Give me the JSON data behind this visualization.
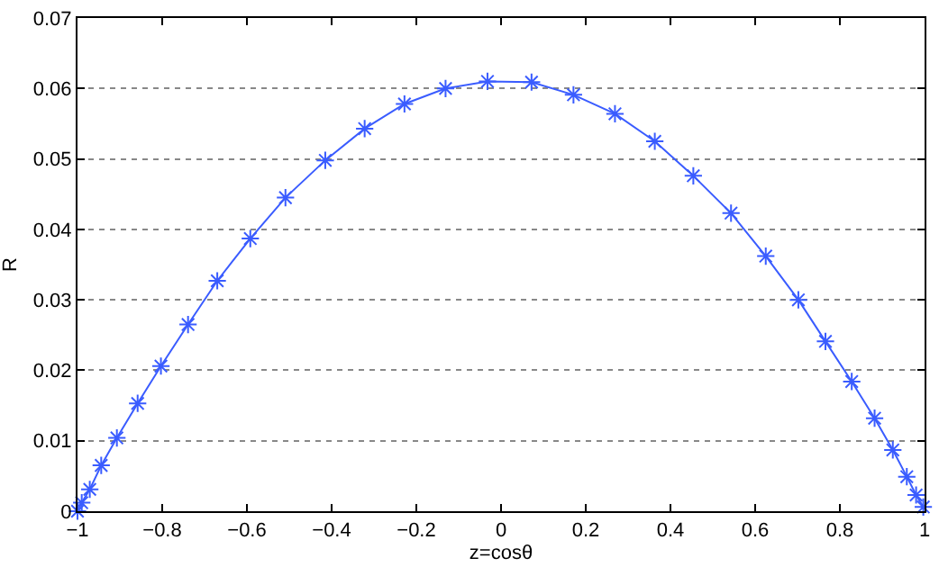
{
  "chart_data": {
    "type": "line",
    "xlabel": "z=cosθ",
    "ylabel": "R",
    "x": [
      -1,
      -0.99,
      -0.971,
      -0.944,
      -0.907,
      -0.858,
      -0.803,
      -0.739,
      -0.67,
      -0.592,
      -0.509,
      -0.415,
      -0.322,
      -0.228,
      -0.131,
      -0.032,
      0.072,
      0.171,
      0.269,
      0.363,
      0.454,
      0.543,
      0.625,
      0.702,
      0.766,
      0.828,
      0.882,
      0.925,
      0.958,
      0.98,
      0.997
    ],
    "series": [
      {
        "color": "#3a5cff",
        "values": [
          0,
          0.0012,
          0.0031,
          0.0065,
          0.0104,
          0.0153,
          0.0206,
          0.0265,
          0.0327,
          0.0387,
          0.0445,
          0.0498,
          0.0543,
          0.0578,
          0.06,
          0.061,
          0.0609,
          0.0591,
          0.0564,
          0.0525,
          0.0476,
          0.0423,
          0.0362,
          0.03,
          0.0241,
          0.0184,
          0.0132,
          0.0087,
          0.0049,
          0.0023,
          0.0006
        ]
      }
    ],
    "xlim": [
      -1,
      1
    ],
    "xticks": [
      {
        "value": -1,
        "label": "−1"
      },
      {
        "value": -0.8,
        "label": "−0.8"
      },
      {
        "value": -0.6,
        "label": "−0.6"
      },
      {
        "value": -0.4,
        "label": "−0.4"
      },
      {
        "value": -0.2,
        "label": "−0.2"
      },
      0,
      0.2,
      0.4,
      0.6,
      0.8,
      1
    ],
    "ylim": [
      0,
      0.07
    ],
    "yticks": [
      0,
      0.01,
      0.02,
      0.03,
      0.04,
      0.05,
      0.06,
      0.07
    ],
    "grid": "y",
    "marker": "cross",
    "line_style": "solid",
    "legend": false
  }
}
